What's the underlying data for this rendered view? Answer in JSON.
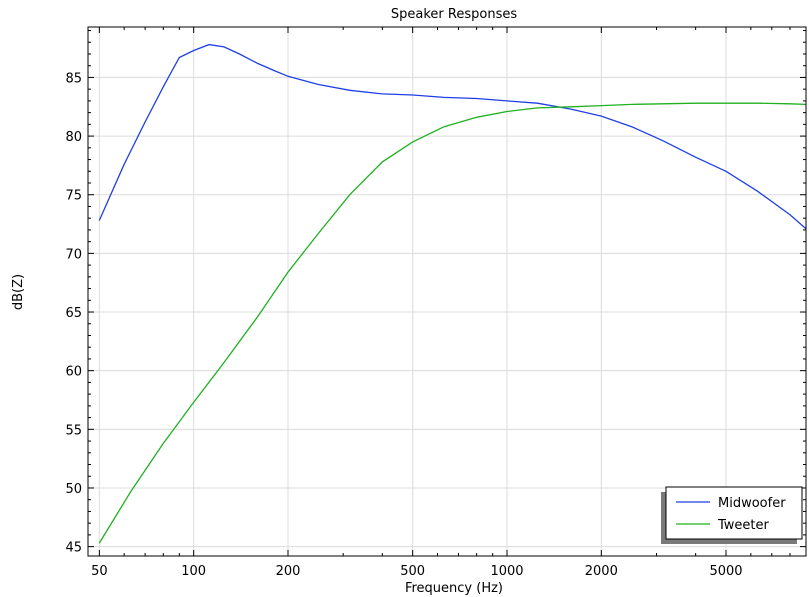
{
  "chart_data": {
    "type": "line",
    "title": "Speaker Responses",
    "xlabel": "Frequency (Hz)",
    "ylabel": "dB(Z)",
    "x_scale": "log",
    "xlim": [
      46,
      9000
    ],
    "ylim": [
      44.2,
      89.3
    ],
    "x_ticks": [
      50,
      100,
      200,
      500,
      1000,
      2000,
      5000
    ],
    "x_tick_labels": [
      "50",
      "100",
      "200",
      "500",
      "1000",
      "2000",
      "5000"
    ],
    "y_ticks": [
      45,
      50,
      55,
      60,
      65,
      70,
      75,
      80,
      85
    ],
    "y_tick_labels": [
      "45",
      "50",
      "55",
      "60",
      "65",
      "70",
      "75",
      "80",
      "85"
    ],
    "grid": true,
    "legend_position": "bottom-right",
    "series": [
      {
        "name": "Midwoofer",
        "color": "#1f3fe6",
        "x": [
          50,
          60,
          70,
          80,
          90,
          100,
          112,
          125,
          140,
          160,
          180,
          200,
          250,
          315,
          400,
          500,
          630,
          800,
          1000,
          1250,
          1600,
          2000,
          2500,
          3150,
          4000,
          5000,
          6300,
          8000,
          9000
        ],
        "y": [
          72.8,
          77.6,
          81.2,
          84.2,
          86.7,
          87.3,
          87.8,
          87.6,
          87.0,
          86.2,
          85.6,
          85.1,
          84.4,
          83.9,
          83.6,
          83.5,
          83.3,
          83.2,
          83.0,
          82.8,
          82.3,
          81.7,
          80.8,
          79.6,
          78.2,
          77.0,
          75.3,
          73.3,
          72.1
        ]
      },
      {
        "name": "Tweeter",
        "color": "#20b020",
        "x": [
          50,
          63,
          80,
          100,
          125,
          160,
          200,
          250,
          315,
          400,
          500,
          630,
          800,
          1000,
          1250,
          1600,
          2000,
          2500,
          3150,
          4000,
          5000,
          6300,
          8000,
          9000
        ],
        "y": [
          45.3,
          49.7,
          53.8,
          57.3,
          60.7,
          64.6,
          68.4,
          71.7,
          75.0,
          77.8,
          79.5,
          80.8,
          81.6,
          82.1,
          82.4,
          82.5,
          82.6,
          82.7,
          82.75,
          82.8,
          82.8,
          82.8,
          82.75,
          82.7
        ]
      }
    ]
  }
}
